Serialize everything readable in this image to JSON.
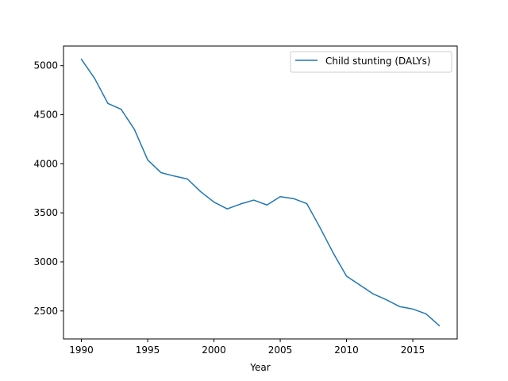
{
  "chart_data": {
    "type": "line",
    "title": "",
    "xlabel": "Year",
    "ylabel": "",
    "xlim": [
      1988.65,
      2018.35
    ],
    "ylim": [
      2215,
      5200
    ],
    "xticks": [
      1990,
      1995,
      2000,
      2005,
      2010,
      2015
    ],
    "yticks": [
      2500,
      3000,
      3500,
      4000,
      4500,
      5000
    ],
    "grid": false,
    "legend_position": "top-right",
    "series": [
      {
        "name": "Child stunting (DALYs)",
        "color": "#1f77b4",
        "x": [
          1990,
          1991,
          1992,
          1993,
          1994,
          1995,
          1996,
          1997,
          1998,
          1999,
          2000,
          2001,
          2002,
          2003,
          2004,
          2005,
          2006,
          2007,
          2008,
          2009,
          2010,
          2011,
          2012,
          2013,
          2014,
          2015,
          2016,
          2017
        ],
        "values": [
          5065,
          4870,
          4615,
          4555,
          4350,
          4040,
          3910,
          3875,
          3845,
          3715,
          3610,
          3540,
          3590,
          3630,
          3580,
          3665,
          3645,
          3595,
          3350,
          3090,
          2855,
          2765,
          2675,
          2615,
          2545,
          2520,
          2470,
          2350
        ]
      }
    ]
  }
}
